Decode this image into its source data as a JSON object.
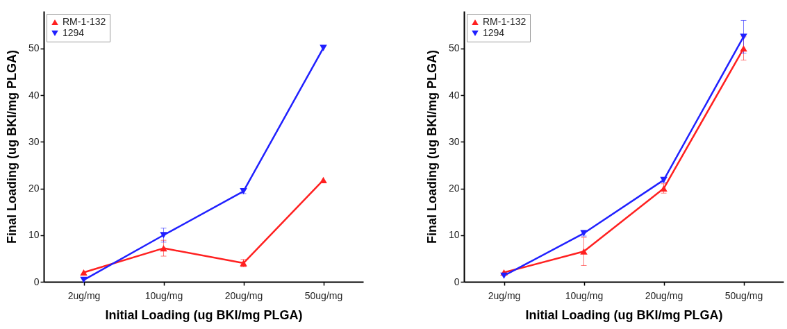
{
  "chart_data": [
    {
      "type": "line",
      "xlabel": "Initial Loading (ug BKI/mg PLGA)",
      "ylabel": "Final Loading (ug BKI/mg PLGA)",
      "categories": [
        "2ug/mg",
        "10ug/mg",
        "20ug/mg",
        "50ug/mg"
      ],
      "ylim": [
        0,
        58
      ],
      "yticks": [
        0,
        10,
        20,
        30,
        40,
        50
      ],
      "legend": "top left",
      "line_style": "solid",
      "series": [
        {
          "name": "RM-1-132",
          "color": "#ff2020",
          "marker": "triangle",
          "values": [
            2.0,
            7.2,
            4.0,
            21.8
          ],
          "errors": [
            null,
            1.7,
            0.8,
            null
          ]
        },
        {
          "name": "1294",
          "color": "#2020ff",
          "marker": "triangle-down",
          "values": [
            0.4,
            10.0,
            19.4,
            50.1
          ],
          "errors": [
            null,
            1.5,
            0.5,
            null
          ]
        }
      ]
    },
    {
      "type": "line",
      "xlabel": "Initial Loading (ug BKI/mg PLGA)",
      "ylabel": "Final Loading (ug BKI/mg PLGA)",
      "categories": [
        "2ug/mg",
        "10ug/mg",
        "20ug/mg",
        "50ug/mg"
      ],
      "ylim": [
        0,
        58
      ],
      "yticks": [
        0,
        10,
        20,
        30,
        40,
        50
      ],
      "legend": "top left",
      "line_style": "solid",
      "series": [
        {
          "name": "RM-1-132",
          "color": "#ff2020",
          "marker": "triangle",
          "values": [
            2.0,
            6.5,
            20.0,
            50.0
          ],
          "errors": [
            null,
            3.0,
            1.0,
            2.5
          ]
        },
        {
          "name": "1294",
          "color": "#2020ff",
          "marker": "triangle-down",
          "values": [
            1.3,
            10.4,
            21.8,
            52.5
          ],
          "errors": [
            null,
            0.6,
            0.5,
            3.5
          ]
        }
      ]
    }
  ]
}
